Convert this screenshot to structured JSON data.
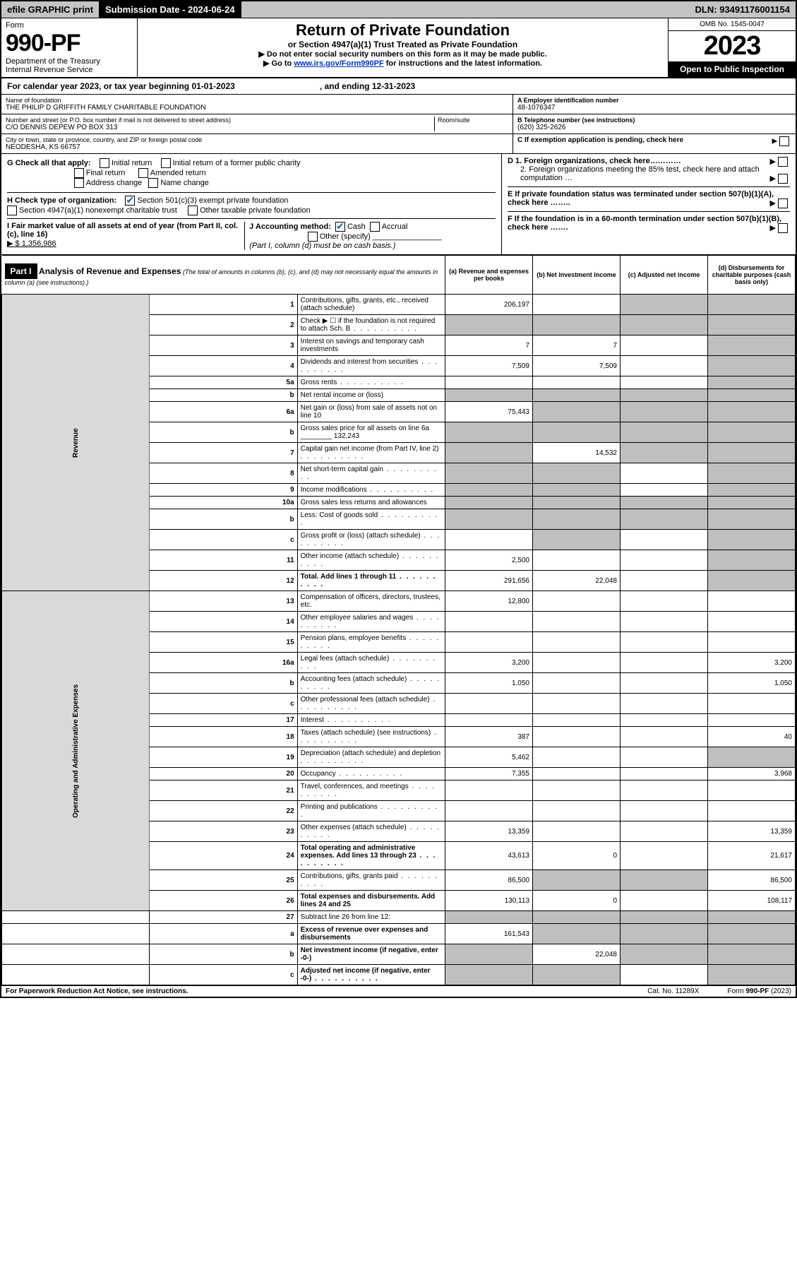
{
  "colors": {
    "background": "#ffffff",
    "text": "#000000",
    "topbar_bg": "#c4c4c4",
    "black_bg": "#000000",
    "white_text": "#ffffff",
    "link": "#0033cc",
    "check": "#1a5fb4",
    "shaded": "#bfbfbf",
    "side_bg": "#d9d9d9"
  },
  "topbar": {
    "efile": "efile GRAPHIC print",
    "submission_label": "Submission Date - 2024-06-24",
    "dln": "DLN: 93491176001154"
  },
  "header": {
    "form_label": "Form",
    "form_number": "990-PF",
    "dept1": "Department of the Treasury",
    "dept2": "Internal Revenue Service",
    "title": "Return of Private Foundation",
    "subtitle": "or Section 4947(a)(1) Trust Treated as Private Foundation",
    "instr1": "▶ Do not enter social security numbers on this form as it may be made public.",
    "instr2_prefix": "▶ Go to ",
    "instr2_link": "www.irs.gov/Form990PF",
    "instr2_suffix": " for instructions and the latest information.",
    "omb": "OMB No. 1545-0047",
    "year": "2023",
    "open": "Open to Public Inspection"
  },
  "period": {
    "text_left": "For calendar year 2023, or tax year beginning 01-01-2023",
    "text_right": ", and ending 12-31-2023"
  },
  "entity": {
    "name_label": "Name of foundation",
    "name": "THE PHILIP D GRIFFITH FAMILY CHARITABLE FOUNDATION",
    "addr_label": "Number and street (or P.O. box number if mail is not delivered to street address)",
    "addr": "C/O DENNIS DEPEW PO BOX 313",
    "room_label": "Room/suite",
    "city_label": "City or town, state or province, country, and ZIP or foreign postal code",
    "city": "NEODESHA, KS  66757",
    "ein_label": "A Employer identification number",
    "ein": "48-1076347",
    "phone_label": "B Telephone number (see instructions)",
    "phone": "(620) 325-2626",
    "c_label": "C If exemption application is pending, check here"
  },
  "checks": {
    "g_label": "G Check all that apply:",
    "g_items": [
      "Initial return",
      "Initial return of a former public charity",
      "Final return",
      "Amended return",
      "Address change",
      "Name change"
    ],
    "h_label": "H Check type of organization:",
    "h_item1": "Section 501(c)(3) exempt private foundation",
    "h_item2": "Section 4947(a)(1) nonexempt charitable trust",
    "h_item3": "Other taxable private foundation",
    "i_label": "I Fair market value of all assets at end of year (from Part II, col. (c), line 16)",
    "i_value": "▶ $  1,356,986",
    "j_label": "J Accounting method:",
    "j_cash": "Cash",
    "j_accrual": "Accrual",
    "j_other": "Other (specify)",
    "j_note": "(Part I, column (d) must be on cash basis.)",
    "d1": "D 1. Foreign organizations, check here…………",
    "d2": "2. Foreign organizations meeting the 85% test, check here and attach computation …",
    "e": "E  If private foundation status was terminated under section 507(b)(1)(A), check here ……..",
    "f": "F  If the foundation is in a 60-month termination under section 507(b)(1)(B), check here ……."
  },
  "part1": {
    "label": "Part I",
    "title": "Analysis of Revenue and Expenses",
    "title_paren": "(The total of amounts in columns (b), (c), and (d) may not necessarily equal the amounts in column (a) (see instructions).)",
    "col_a": "(a)  Revenue and expenses per books",
    "col_b": "(b)  Net investment income",
    "col_c": "(c)  Adjusted net income",
    "col_d": "(d)  Disbursements for charitable purposes (cash basis only)"
  },
  "sides": {
    "revenue": "Revenue",
    "expenses": "Operating and Administrative Expenses"
  },
  "rows": [
    {
      "n": "1",
      "desc": "Contributions, gifts, grants, etc., received (attach schedule)",
      "a": "206,197",
      "b": "",
      "c": "shaded",
      "d": "shaded",
      "section": "rev"
    },
    {
      "n": "2",
      "desc": "Check ▶ ☐ if the foundation is not required to attach Sch. B",
      "a": "shaded",
      "b": "shaded",
      "c": "shaded",
      "d": "shaded",
      "section": "rev",
      "dots": true
    },
    {
      "n": "3",
      "desc": "Interest on savings and temporary cash investments",
      "a": "7",
      "b": "7",
      "c": "",
      "d": "shaded",
      "section": "rev"
    },
    {
      "n": "4",
      "desc": "Dividends and interest from securities",
      "a": "7,509",
      "b": "7,509",
      "c": "",
      "d": "shaded",
      "section": "rev",
      "dots": true
    },
    {
      "n": "5a",
      "desc": "Gross rents",
      "a": "",
      "b": "",
      "c": "",
      "d": "shaded",
      "section": "rev",
      "dots": true
    },
    {
      "n": "b",
      "desc": "Net rental income or (loss)",
      "a": "shaded",
      "b": "shaded",
      "c": "shaded",
      "d": "shaded",
      "section": "rev",
      "inset": true
    },
    {
      "n": "6a",
      "desc": "Net gain or (loss) from sale of assets not on line 10",
      "a": "75,443",
      "b": "shaded",
      "c": "shaded",
      "d": "shaded",
      "section": "rev"
    },
    {
      "n": "b",
      "desc": "Gross sales price for all assets on line 6a ________ 132,243",
      "a": "shaded",
      "b": "shaded",
      "c": "shaded",
      "d": "shaded",
      "section": "rev"
    },
    {
      "n": "7",
      "desc": "Capital gain net income (from Part IV, line 2)",
      "a": "shaded",
      "b": "14,532",
      "c": "shaded",
      "d": "shaded",
      "section": "rev",
      "dots": true
    },
    {
      "n": "8",
      "desc": "Net short-term capital gain",
      "a": "shaded",
      "b": "shaded",
      "c": "",
      "d": "shaded",
      "section": "rev",
      "dots": true
    },
    {
      "n": "9",
      "desc": "Income modifications",
      "a": "shaded",
      "b": "shaded",
      "c": "",
      "d": "shaded",
      "section": "rev",
      "dots": true
    },
    {
      "n": "10a",
      "desc": "Gross sales less returns and allowances",
      "a": "shaded",
      "b": "shaded",
      "c": "shaded",
      "d": "shaded",
      "section": "rev",
      "inset": true
    },
    {
      "n": "b",
      "desc": "Less: Cost of goods sold",
      "a": "shaded",
      "b": "shaded",
      "c": "shaded",
      "d": "shaded",
      "section": "rev",
      "dots": true,
      "inset": true
    },
    {
      "n": "c",
      "desc": "Gross profit or (loss) (attach schedule)",
      "a": "",
      "b": "shaded",
      "c": "",
      "d": "shaded",
      "section": "rev",
      "dots": true
    },
    {
      "n": "11",
      "desc": "Other income (attach schedule)",
      "a": "2,500",
      "b": "",
      "c": "",
      "d": "shaded",
      "section": "rev",
      "dots": true
    },
    {
      "n": "12",
      "desc": "Total. Add lines 1 through 11",
      "a": "291,656",
      "b": "22,048",
      "c": "",
      "d": "shaded",
      "section": "rev",
      "bold": true,
      "dots": true
    },
    {
      "n": "13",
      "desc": "Compensation of officers, directors, trustees, etc.",
      "a": "12,800",
      "b": "",
      "c": "",
      "d": "",
      "section": "exp"
    },
    {
      "n": "14",
      "desc": "Other employee salaries and wages",
      "a": "",
      "b": "",
      "c": "",
      "d": "",
      "section": "exp",
      "dots": true
    },
    {
      "n": "15",
      "desc": "Pension plans, employee benefits",
      "a": "",
      "b": "",
      "c": "",
      "d": "",
      "section": "exp",
      "dots": true
    },
    {
      "n": "16a",
      "desc": "Legal fees (attach schedule)",
      "a": "3,200",
      "b": "",
      "c": "",
      "d": "3,200",
      "section": "exp",
      "dots": true
    },
    {
      "n": "b",
      "desc": "Accounting fees (attach schedule)",
      "a": "1,050",
      "b": "",
      "c": "",
      "d": "1,050",
      "section": "exp",
      "dots": true
    },
    {
      "n": "c",
      "desc": "Other professional fees (attach schedule)",
      "a": "",
      "b": "",
      "c": "",
      "d": "",
      "section": "exp",
      "dots": true
    },
    {
      "n": "17",
      "desc": "Interest",
      "a": "",
      "b": "",
      "c": "",
      "d": "",
      "section": "exp",
      "dots": true
    },
    {
      "n": "18",
      "desc": "Taxes (attach schedule) (see instructions)",
      "a": "387",
      "b": "",
      "c": "",
      "d": "40",
      "section": "exp",
      "dots": true
    },
    {
      "n": "19",
      "desc": "Depreciation (attach schedule) and depletion",
      "a": "5,462",
      "b": "",
      "c": "",
      "d": "shaded",
      "section": "exp",
      "dots": true
    },
    {
      "n": "20",
      "desc": "Occupancy",
      "a": "7,355",
      "b": "",
      "c": "",
      "d": "3,968",
      "section": "exp",
      "dots": true
    },
    {
      "n": "21",
      "desc": "Travel, conferences, and meetings",
      "a": "",
      "b": "",
      "c": "",
      "d": "",
      "section": "exp",
      "dots": true
    },
    {
      "n": "22",
      "desc": "Printing and publications",
      "a": "",
      "b": "",
      "c": "",
      "d": "",
      "section": "exp",
      "dots": true
    },
    {
      "n": "23",
      "desc": "Other expenses (attach schedule)",
      "a": "13,359",
      "b": "",
      "c": "",
      "d": "13,359",
      "section": "exp",
      "dots": true
    },
    {
      "n": "24",
      "desc": "Total operating and administrative expenses. Add lines 13 through 23",
      "a": "43,613",
      "b": "0",
      "c": "",
      "d": "21,617",
      "section": "exp",
      "bold": true,
      "dots": true
    },
    {
      "n": "25",
      "desc": "Contributions, gifts, grants paid",
      "a": "86,500",
      "b": "shaded",
      "c": "shaded",
      "d": "86,500",
      "section": "exp",
      "dots": true
    },
    {
      "n": "26",
      "desc": "Total expenses and disbursements. Add lines 24 and 25",
      "a": "130,113",
      "b": "0",
      "c": "",
      "d": "108,117",
      "section": "exp",
      "bold": true
    },
    {
      "n": "27",
      "desc": "Subtract line 26 from line 12:",
      "a": "shaded",
      "b": "shaded",
      "c": "shaded",
      "d": "shaded",
      "section": "bot"
    },
    {
      "n": "a",
      "desc": "Excess of revenue over expenses and disbursements",
      "a": "161,543",
      "b": "shaded",
      "c": "shaded",
      "d": "shaded",
      "section": "bot",
      "bold": true
    },
    {
      "n": "b",
      "desc": "Net investment income (if negative, enter -0-)",
      "a": "shaded",
      "b": "22,048",
      "c": "shaded",
      "d": "shaded",
      "section": "bot",
      "bold": true
    },
    {
      "n": "c",
      "desc": "Adjusted net income (if negative, enter -0-)",
      "a": "shaded",
      "b": "shaded",
      "c": "",
      "d": "shaded",
      "section": "bot",
      "bold": true,
      "dots": true
    }
  ],
  "footer": {
    "left": "For Paperwork Reduction Act Notice, see instructions.",
    "center": "Cat. No. 11289X",
    "right": "Form 990-PF (2023)"
  }
}
